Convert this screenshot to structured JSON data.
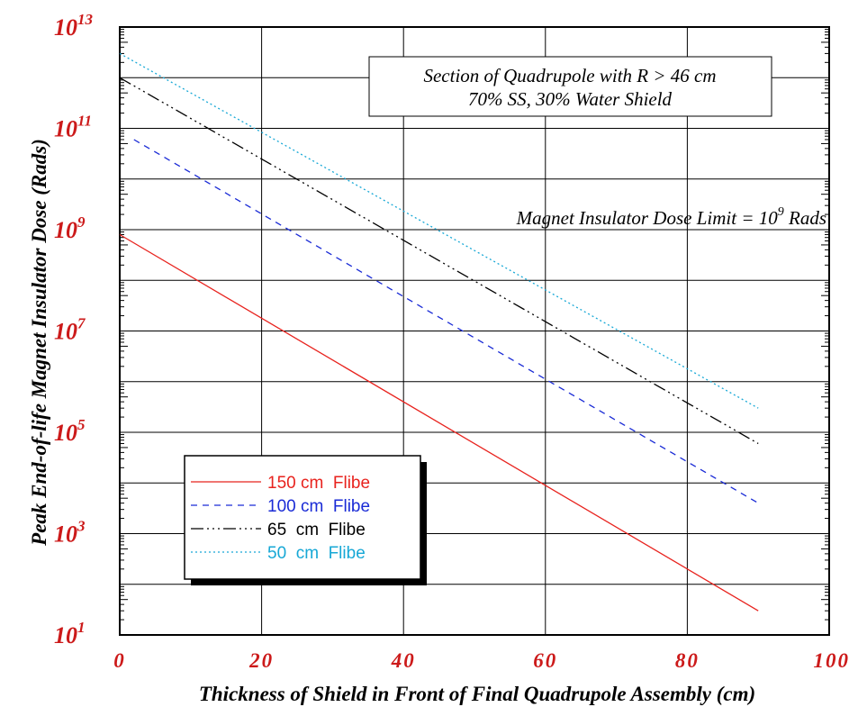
{
  "chart_data": {
    "type": "line",
    "xlabel": "Thickness of Shield in Front of Final Quadrupole Assembly (cm)",
    "ylabel": "Peak End-of-life Magnet Insulator Dose (Rads)",
    "xlim": [
      0,
      100
    ],
    "ylim": [
      10,
      10000000000000
    ],
    "yscale": "log",
    "grid": true,
    "x_ticks": [
      "0",
      "20",
      "40",
      "60",
      "80",
      "100"
    ],
    "y_ticks": [
      {
        "base": "10",
        "exp": "1",
        "value": 10
      },
      {
        "base": "10",
        "exp": "3",
        "value": 1000
      },
      {
        "base": "10",
        "exp": "5",
        "value": 100000
      },
      {
        "base": "10",
        "exp": "7",
        "value": 10000000
      },
      {
        "base": "10",
        "exp": "9",
        "value": 1000000000
      },
      {
        "base": "10",
        "exp": "11",
        "value": 100000000000
      },
      {
        "base": "10",
        "exp": "13",
        "value": 10000000000000
      }
    ],
    "annotation_box": {
      "line1": "Section of Quadrupole with R > 46 cm",
      "line2": "70% SS, 30% Water Shield"
    },
    "limit_label": {
      "text": "Magnet Insulator Dose Limit = 10",
      "exp": "9",
      "suffix": " Rads"
    },
    "legend_position": "bottom-left",
    "series": [
      {
        "name": "150 cm  Flibe",
        "color": "#e8231e",
        "dash": "",
        "x": [
          0,
          90
        ],
        "y": [
          800000000,
          30
        ]
      },
      {
        "name": "100 cm  Flibe",
        "color": "#1a2bd6",
        "dash": "7,6",
        "x": [
          2,
          90
        ],
        "y": [
          60000000000,
          4000
        ]
      },
      {
        "name": "65  cm  Flibe",
        "color": "#000000",
        "dash": "14,4,2,4,2,4,2,4",
        "x": [
          0,
          90
        ],
        "y": [
          1000000000000,
          60000
        ]
      },
      {
        "name": "50  cm  Flibe",
        "color": "#17a8d6",
        "dash": "2,3",
        "x": [
          0,
          90
        ],
        "y": [
          3000000000000,
          300000
        ]
      }
    ]
  }
}
